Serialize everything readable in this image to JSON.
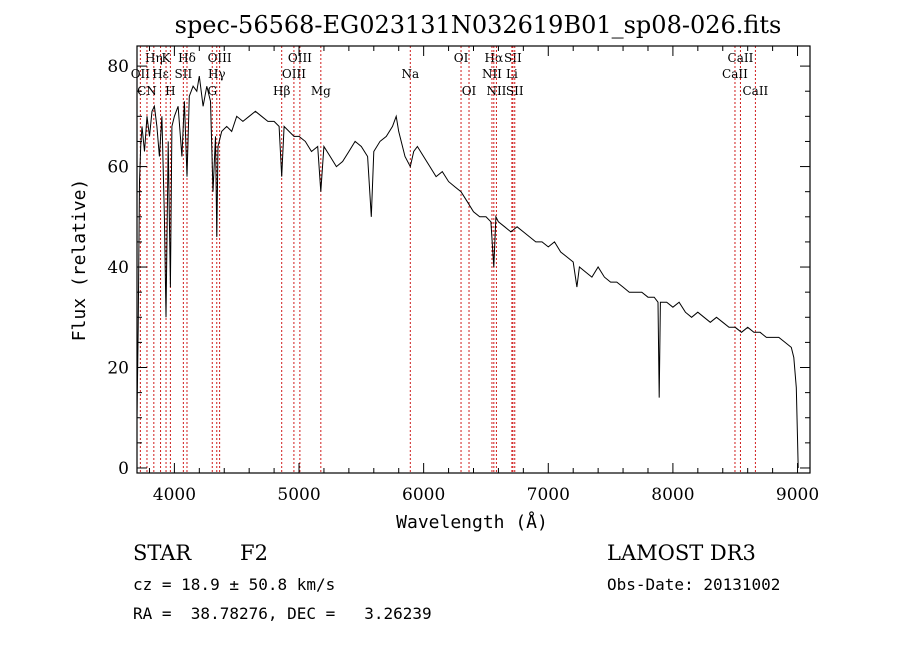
{
  "chart_data": {
    "type": "line",
    "title": "spec-56568-EG023131N032619B01_sp08-026.fits",
    "xlabel": "Wavelength (Å)",
    "ylabel": "Flux (relative)",
    "xlim": [
      3700,
      9100
    ],
    "ylim": [
      -1,
      84
    ],
    "xticks": [
      4000,
      5000,
      6000,
      7000,
      8000,
      9000
    ],
    "yticks": [
      0,
      20,
      40,
      60,
      80
    ],
    "series": [
      {
        "name": "flux",
        "x": [
          3700,
          3710,
          3720,
          3730,
          3740,
          3760,
          3780,
          3800,
          3820,
          3840,
          3860,
          3880,
          3900,
          3920,
          3933,
          3950,
          3968,
          3980,
          4000,
          4030,
          4060,
          4080,
          4101,
          4120,
          4150,
          4180,
          4200,
          4230,
          4260,
          4290,
          4310,
          4330,
          4340,
          4350,
          4380,
          4420,
          4460,
          4500,
          4550,
          4600,
          4650,
          4700,
          4750,
          4800,
          4840,
          4861,
          4880,
          4920,
          4960,
          5000,
          5050,
          5100,
          5150,
          5175,
          5200,
          5250,
          5300,
          5350,
          5400,
          5450,
          5500,
          5550,
          5580,
          5600,
          5650,
          5700,
          5750,
          5780,
          5800,
          5850,
          5893,
          5920,
          5950,
          6000,
          6050,
          6100,
          6150,
          6200,
          6250,
          6300,
          6350,
          6400,
          6450,
          6500,
          6540,
          6563,
          6580,
          6600,
          6650,
          6700,
          6750,
          6800,
          6850,
          6900,
          6950,
          7000,
          7050,
          7100,
          7150,
          7200,
          7230,
          7250,
          7300,
          7350,
          7400,
          7450,
          7500,
          7550,
          7600,
          7650,
          7700,
          7750,
          7800,
          7850,
          7880,
          7890,
          7900,
          7950,
          8000,
          8050,
          8100,
          8150,
          8200,
          8250,
          8300,
          8350,
          8400,
          8450,
          8500,
          8550,
          8600,
          8650,
          8700,
          8750,
          8800,
          8850,
          8900,
          8950,
          8970,
          8990,
          9000,
          9005
        ],
        "y": [
          10,
          28,
          57,
          64,
          68,
          63,
          70,
          66,
          71,
          72,
          68,
          62,
          70,
          50,
          30,
          65,
          36,
          68,
          70,
          72,
          62,
          73,
          58,
          74,
          76,
          75,
          78,
          72,
          76,
          73,
          55,
          66,
          46,
          64,
          67,
          68,
          67,
          70,
          69,
          70,
          71,
          70,
          69,
          69,
          68,
          58,
          68,
          67,
          66,
          66,
          65,
          63,
          64,
          55,
          64,
          62,
          60,
          61,
          63,
          65,
          64,
          62,
          50,
          63,
          65,
          66,
          68,
          70,
          67,
          62,
          60,
          63,
          64,
          62,
          60,
          58,
          59,
          57,
          56,
          55,
          53,
          51,
          50,
          50,
          49,
          40,
          50,
          49,
          48,
          47,
          48,
          47,
          46,
          45,
          45,
          44,
          45,
          43,
          42,
          41,
          36,
          40,
          39,
          38,
          40,
          38,
          37,
          37,
          36,
          35,
          35,
          35,
          34,
          34,
          33,
          14,
          33,
          33,
          32,
          33,
          31,
          30,
          31,
          30,
          29,
          30,
          29,
          28,
          28,
          27,
          28,
          27,
          27,
          26,
          26,
          26,
          25,
          24,
          22,
          16,
          6,
          0
        ]
      }
    ],
    "lines": [
      {
        "name": "Hδ",
        "wl": 4101,
        "label": "Hδ",
        "row": 1
      },
      {
        "name": "K",
        "wl": 3933,
        "label": "K",
        "row": 1
      },
      {
        "name": "H",
        "wl": 3968,
        "label": "H",
        "row": 3
      },
      {
        "name": "Hη",
        "wl": 3835,
        "label": "Hη",
        "row": 1
      },
      {
        "name": "OII",
        "wl": 3727,
        "label": "OII",
        "row": 2
      },
      {
        "name": "Hε",
        "wl": 3889,
        "label": "Hε",
        "row": 2
      },
      {
        "name": "SII",
        "wl": 4072,
        "label": "SII",
        "row": 2
      },
      {
        "name": "CN",
        "wl": 3780,
        "label": "CN",
        "row": 3
      },
      {
        "name": "OIII-4363",
        "wl": 4363,
        "label": "OIII",
        "row": 1
      },
      {
        "name": "Hγ",
        "wl": 4340,
        "label": "Hγ",
        "row": 2
      },
      {
        "name": "G",
        "wl": 4304,
        "label": "G",
        "row": 3
      },
      {
        "name": "OIII-5007",
        "wl": 5007,
        "label": "OIII",
        "row": 1
      },
      {
        "name": "OIII-4959",
        "wl": 4959,
        "label": "OIII",
        "row": 2
      },
      {
        "name": "Hβ",
        "wl": 4861,
        "label": "Hβ",
        "row": 3
      },
      {
        "name": "Mg",
        "wl": 5175,
        "label": "Mg",
        "row": 3
      },
      {
        "name": "Na",
        "wl": 5893,
        "label": "Na",
        "row": 2
      },
      {
        "name": "OI-6300",
        "wl": 6300,
        "label": "OI",
        "row": 1
      },
      {
        "name": "OI-6364",
        "wl": 6364,
        "label": "OI",
        "row": 3
      },
      {
        "name": "Hα",
        "wl": 6563,
        "label": "Hα",
        "row": 1
      },
      {
        "name": "NII-6548",
        "wl": 6548,
        "label": "NII",
        "row": 2
      },
      {
        "name": "NII-6584",
        "wl": 6584,
        "label": "NII",
        "row": 3
      },
      {
        "name": "SII-6716",
        "wl": 6716,
        "label": "SII",
        "row": 1
      },
      {
        "name": "Li",
        "wl": 6708,
        "label": "Li",
        "row": 2
      },
      {
        "name": "SII-6731",
        "wl": 6731,
        "label": "SII",
        "row": 3
      },
      {
        "name": "CaII-8542",
        "wl": 8542,
        "label": "CaII",
        "row": 1
      },
      {
        "name": "CaII-8498",
        "wl": 8498,
        "label": "CaII",
        "row": 2
      },
      {
        "name": "CaII-8662",
        "wl": 8662,
        "label": "CaII",
        "row": 3
      }
    ]
  },
  "info": {
    "object_class": "STAR",
    "subclass": "F2",
    "redshift": "cz = 18.9 ± 50.8 km/s",
    "coords": "RA =  38.78276, DEC =   3.26239",
    "survey": "LAMOST DR3",
    "obs_date": "Obs-Date: 20131002"
  },
  "colors": {
    "line_marker": "#d01c1c",
    "spectrum": "#000000",
    "axes": "#000000"
  }
}
